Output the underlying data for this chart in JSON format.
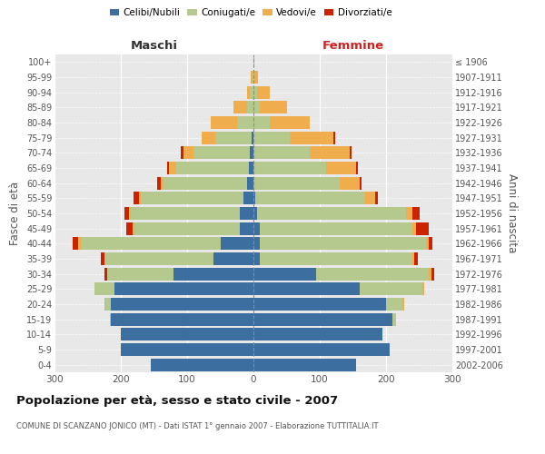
{
  "age_groups": [
    "0-4",
    "5-9",
    "10-14",
    "15-19",
    "20-24",
    "25-29",
    "30-34",
    "35-39",
    "40-44",
    "45-49",
    "50-54",
    "55-59",
    "60-64",
    "65-69",
    "70-74",
    "75-79",
    "80-84",
    "85-89",
    "90-94",
    "95-99",
    "100+"
  ],
  "birth_years": [
    "2002-2006",
    "1997-2001",
    "1992-1996",
    "1987-1991",
    "1982-1986",
    "1977-1981",
    "1972-1976",
    "1967-1971",
    "1962-1966",
    "1957-1961",
    "1952-1956",
    "1947-1951",
    "1942-1946",
    "1937-1941",
    "1932-1936",
    "1927-1931",
    "1922-1926",
    "1917-1921",
    "1912-1916",
    "1907-1911",
    "≤ 1906"
  ],
  "colors": {
    "celibe": "#3d6ea0",
    "coniugato": "#b5c98e",
    "vedovo": "#f0ad4e",
    "divorziato": "#cc2200"
  },
  "male": {
    "celibe": [
      155,
      200,
      200,
      215,
      215,
      210,
      120,
      60,
      50,
      20,
      20,
      15,
      10,
      7,
      5,
      3,
      0,
      0,
      0,
      0,
      0
    ],
    "coniugato": [
      0,
      0,
      0,
      2,
      8,
      30,
      100,
      165,
      210,
      160,
      165,
      155,
      125,
      110,
      85,
      55,
      25,
      10,
      5,
      2,
      0
    ],
    "vedovo": [
      0,
      0,
      0,
      0,
      2,
      0,
      0,
      0,
      5,
      2,
      2,
      3,
      5,
      10,
      15,
      20,
      40,
      20,
      5,
      2,
      0
    ],
    "divorziato": [
      0,
      0,
      0,
      0,
      0,
      0,
      5,
      5,
      8,
      10,
      8,
      8,
      5,
      3,
      5,
      0,
      0,
      0,
      0,
      0,
      0
    ]
  },
  "female": {
    "nubile": [
      155,
      205,
      195,
      210,
      200,
      160,
      95,
      10,
      10,
      10,
      5,
      3,
      0,
      0,
      0,
      0,
      0,
      0,
      0,
      0,
      0
    ],
    "coniugata": [
      0,
      0,
      0,
      5,
      25,
      95,
      170,
      230,
      250,
      230,
      225,
      165,
      130,
      110,
      85,
      55,
      25,
      10,
      5,
      2,
      0
    ],
    "vedova": [
      0,
      0,
      0,
      0,
      2,
      2,
      3,
      3,
      5,
      5,
      10,
      15,
      30,
      45,
      60,
      65,
      60,
      40,
      20,
      5,
      2
    ],
    "divorziata": [
      0,
      0,
      0,
      0,
      0,
      0,
      5,
      5,
      5,
      20,
      10,
      5,
      3,
      3,
      3,
      3,
      0,
      0,
      0,
      0,
      0
    ]
  },
  "xlim": 300,
  "title": "Popolazione per età, sesso e stato civile - 2007",
  "subtitle": "COMUNE DI SCANZANO JONICO (MT) - Dati ISTAT 1° gennaio 2007 - Elaborazione TUTTITALIA.IT",
  "xlabel_left": "Maschi",
  "xlabel_right": "Femmine",
  "ylabel_left": "Fasce di età",
  "ylabel_right": "Anni di nascita",
  "background_color": "#e8e8e8",
  "bar_height": 0.85
}
